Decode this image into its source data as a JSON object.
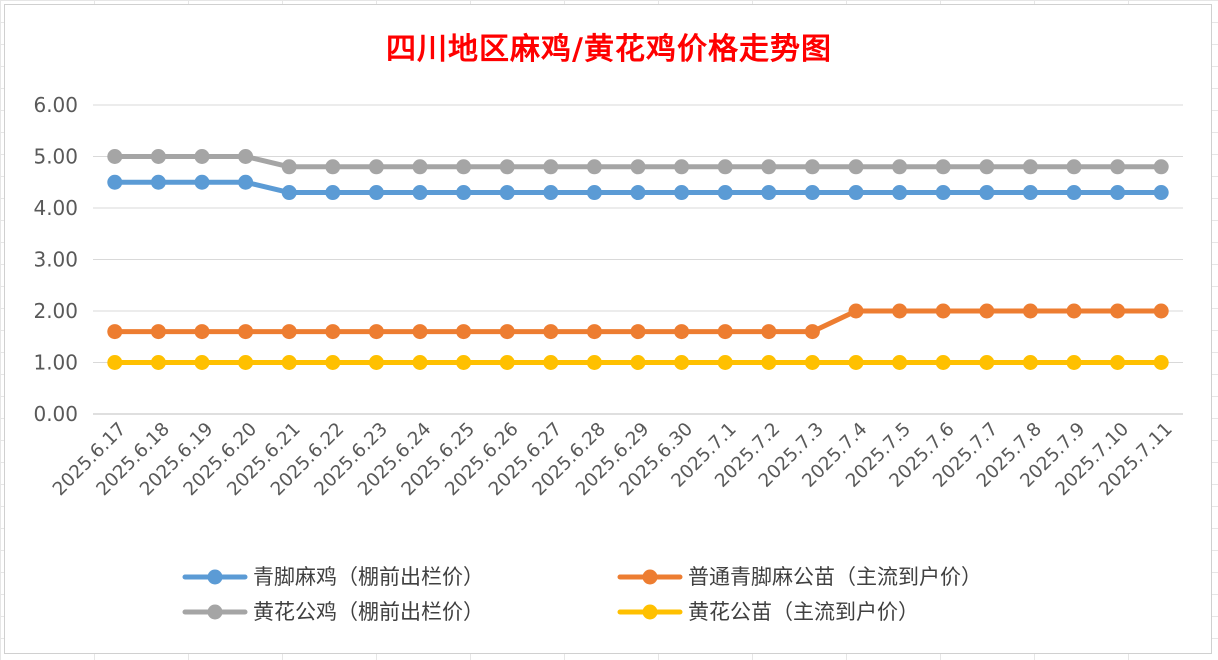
{
  "chart_data": {
    "type": "line",
    "title": "四川地区麻鸡/黄花鸡价格走势图",
    "xlabel": "",
    "ylabel": "",
    "ylim": [
      0,
      6
    ],
    "yticks": [
      "0.00",
      "1.00",
      "2.00",
      "3.00",
      "4.00",
      "5.00",
      "6.00"
    ],
    "grid": true,
    "legend_position": "bottom",
    "categories": [
      "2025.6.17",
      "2025.6.18",
      "2025.6.19",
      "2025.6.20",
      "2025.6.21",
      "2025.6.22",
      "2025.6.23",
      "2025.6.24",
      "2025.6.25",
      "2025.6.26",
      "2025.6.27",
      "2025.6.28",
      "2025.6.29",
      "2025.6.30",
      "2025.7.1",
      "2025.7.2",
      "2025.7.3",
      "2025.7.4",
      "2025.7.5",
      "2025.7.6",
      "2025.7.7",
      "2025.7.8",
      "2025.7.9",
      "2025.7.10",
      "2025.7.11"
    ],
    "series": [
      {
        "name": "青脚麻鸡（棚前出栏价）",
        "color": "#5b9bd5",
        "values": [
          4.5,
          4.5,
          4.5,
          4.5,
          4.3,
          4.3,
          4.3,
          4.3,
          4.3,
          4.3,
          4.3,
          4.3,
          4.3,
          4.3,
          4.3,
          4.3,
          4.3,
          4.3,
          4.3,
          4.3,
          4.3,
          4.3,
          4.3,
          4.3,
          4.3
        ]
      },
      {
        "name": "普通青脚麻公苗（主流到户价）",
        "color": "#ed7d31",
        "values": [
          1.6,
          1.6,
          1.6,
          1.6,
          1.6,
          1.6,
          1.6,
          1.6,
          1.6,
          1.6,
          1.6,
          1.6,
          1.6,
          1.6,
          1.6,
          1.6,
          1.6,
          2.0,
          2.0,
          2.0,
          2.0,
          2.0,
          2.0,
          2.0,
          2.0
        ]
      },
      {
        "name": "黄花公鸡（棚前出栏价）",
        "color": "#a5a5a5",
        "values": [
          5.0,
          5.0,
          5.0,
          5.0,
          4.8,
          4.8,
          4.8,
          4.8,
          4.8,
          4.8,
          4.8,
          4.8,
          4.8,
          4.8,
          4.8,
          4.8,
          4.8,
          4.8,
          4.8,
          4.8,
          4.8,
          4.8,
          4.8,
          4.8,
          4.8
        ]
      },
      {
        "name": "黄花公苗（主流到户价）",
        "color": "#ffc000",
        "values": [
          1.0,
          1.0,
          1.0,
          1.0,
          1.0,
          1.0,
          1.0,
          1.0,
          1.0,
          1.0,
          1.0,
          1.0,
          1.0,
          1.0,
          1.0,
          1.0,
          1.0,
          1.0,
          1.0,
          1.0,
          1.0,
          1.0,
          1.0,
          1.0,
          1.0
        ]
      }
    ]
  }
}
